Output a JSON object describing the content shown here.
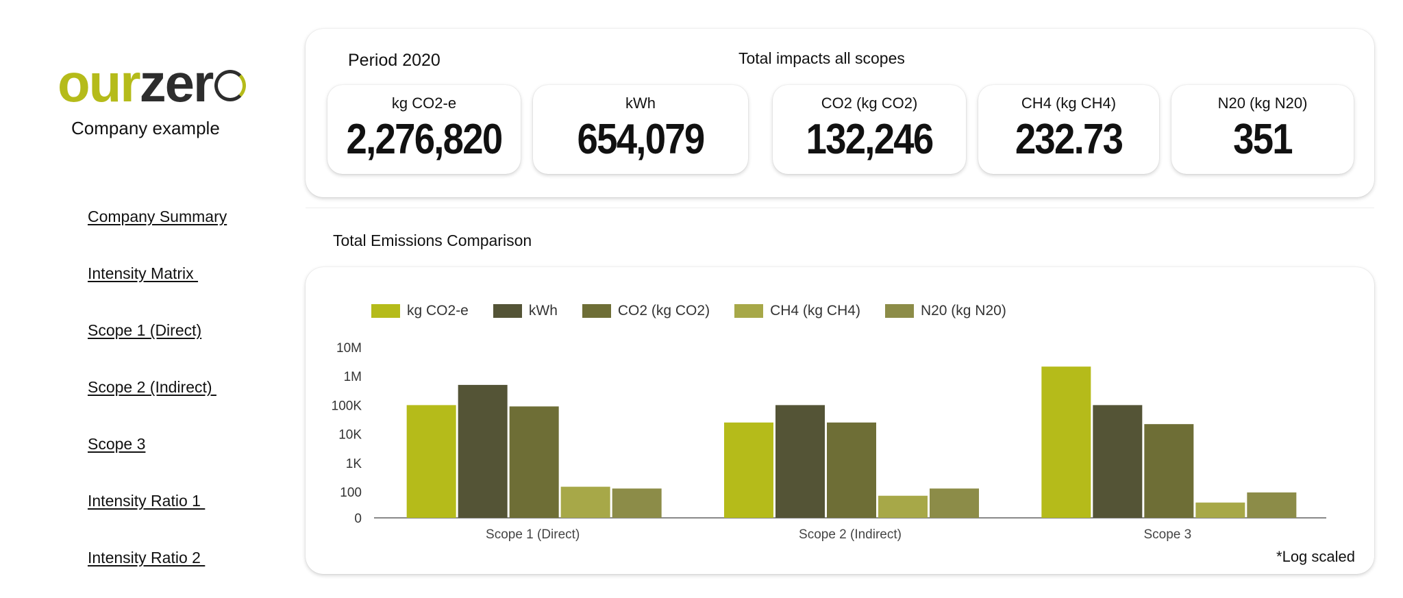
{
  "sidebar": {
    "logo": {
      "our": "our",
      "zer": "zer"
    },
    "company": "Company example",
    "nav": [
      {
        "label": "Company Summary"
      },
      {
        "label": "Intensity Matrix "
      },
      {
        "label": "Scope 1 (Direct)"
      },
      {
        "label": "Scope 2 (Indirect) "
      },
      {
        "label": "Scope 3"
      },
      {
        "label": "Intensity Ratio 1 "
      },
      {
        "label": "Intensity Ratio 2 "
      }
    ]
  },
  "summary": {
    "period": "Period 2020",
    "title": "Total impacts all scopes",
    "kpis": [
      {
        "label": "kg CO2-e",
        "value": "2,276,820"
      },
      {
        "label": "kWh",
        "value": "654,079"
      },
      {
        "label": "CO2 (kg CO2)",
        "value": "132,246"
      },
      {
        "label": "CH4 (kg CH4)",
        "value": "232.73"
      },
      {
        "label": "N20 (kg N20)",
        "value": "351"
      }
    ]
  },
  "comparison": {
    "title": "Total Emissions Comparison",
    "note": "*Log scaled"
  },
  "chart_data": {
    "type": "bar",
    "categories": [
      "Scope 1 (Direct)",
      "Scope 2 (Indirect)",
      "Scope 3"
    ],
    "series": [
      {
        "name": "kg CO2-e",
        "color": "#b5bb1a",
        "values": [
          100000,
          25000,
          2150000
        ]
      },
      {
        "name": "kWh",
        "color": "#545436",
        "values": [
          500000,
          100000,
          100000
        ]
      },
      {
        "name": "CO2 (kg CO2)",
        "color": "#6e6e36",
        "values": [
          90000,
          25000,
          22000
        ]
      },
      {
        "name": "CH4 (kg CH4)",
        "color": "#a7a848",
        "values": [
          150,
          50,
          15
        ]
      },
      {
        "name": "N20 (kg N20)",
        "color": "#8c8c48",
        "values": [
          130,
          130,
          90
        ]
      }
    ],
    "y_scale": "log",
    "y_ticks": [
      {
        "label": "0",
        "value": 1
      },
      {
        "label": "100",
        "value": 100
      },
      {
        "label": "1K",
        "value": 1000
      },
      {
        "label": "10K",
        "value": 10000
      },
      {
        "label": "100K",
        "value": 100000
      },
      {
        "label": "1M",
        "value": 1000000
      },
      {
        "label": "10M",
        "value": 10000000
      }
    ],
    "grid": false,
    "legend_position": "top-left"
  }
}
